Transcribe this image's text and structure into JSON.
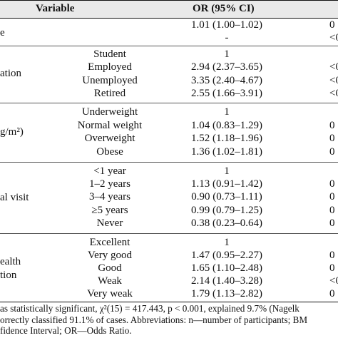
{
  "header": {
    "variable": "Variable",
    "or": "OR (95% CI)"
  },
  "groups": [
    {
      "label": "e",
      "rows": [
        {
          "category": "",
          "or": "1.01 (1.00–1.02)",
          "p": "0"
        },
        {
          "category": "",
          "or": "-",
          "p": "<0"
        }
      ]
    },
    {
      "label": "ation",
      "rows": [
        {
          "category": "Student",
          "or": "1",
          "p": ""
        },
        {
          "category": "Employed",
          "or": "2.94 (2.37–3.65)",
          "p": "<0"
        },
        {
          "category": "Unemployed",
          "or": "3.35 (2.40–4.67)",
          "p": "<0"
        },
        {
          "category": "Retired",
          "or": "2.55 (1.66–3.91)",
          "p": "<0"
        }
      ]
    },
    {
      "label": "g/m²)",
      "rows": [
        {
          "category": "Underweight",
          "or": "1",
          "p": ""
        },
        {
          "category": "Normal weight",
          "or": "1.04 (0.83–1.29)",
          "p": "0"
        },
        {
          "category": "Overweight",
          "or": "1.52 (1.18–1.96)",
          "p": "0"
        },
        {
          "category": "Obese",
          "or": "1.36 (1.02–1.81)",
          "p": "0"
        }
      ]
    },
    {
      "label": "al visit",
      "rows": [
        {
          "category": "<1 year",
          "or": "1",
          "p": ""
        },
        {
          "category": "1–2 years",
          "or": "1.13 (0.91–1.42)",
          "p": "0"
        },
        {
          "category": "3–4 years",
          "or": "0.90 (0.73–1.11)",
          "p": "0"
        },
        {
          "category": "≥5 years",
          "or": "0.99 (0.79–1.25)",
          "p": "0"
        },
        {
          "category": "Never",
          "or": "0.38 (0.23–0.64)",
          "p": "0"
        }
      ]
    },
    {
      "label": "ealth",
      "label2": "tion",
      "rows": [
        {
          "category": "Excellent",
          "or": "1",
          "p": ""
        },
        {
          "category": "Very good",
          "or": "1.47 (0.95–2.27)",
          "p": "0"
        },
        {
          "category": "Good",
          "or": "1.65 (1.10–2.48)",
          "p": "0"
        },
        {
          "category": "Weak",
          "or": "2.14 (1.40–3.28)",
          "p": "<0"
        },
        {
          "category": "Very weak",
          "or": "1.79 (1.13–2.82)",
          "p": "0"
        }
      ]
    }
  ],
  "footer": {
    "line1": "as statistically significant, χ²(15) = 417.443, p < 0.001, explained 9.7% (Nagelk",
    "line2": "orrectly classified 91.1% of cases. Abbreviations: n—number of participants; BM",
    "line3": "fidence Interval; OR—Odds Ratio."
  }
}
